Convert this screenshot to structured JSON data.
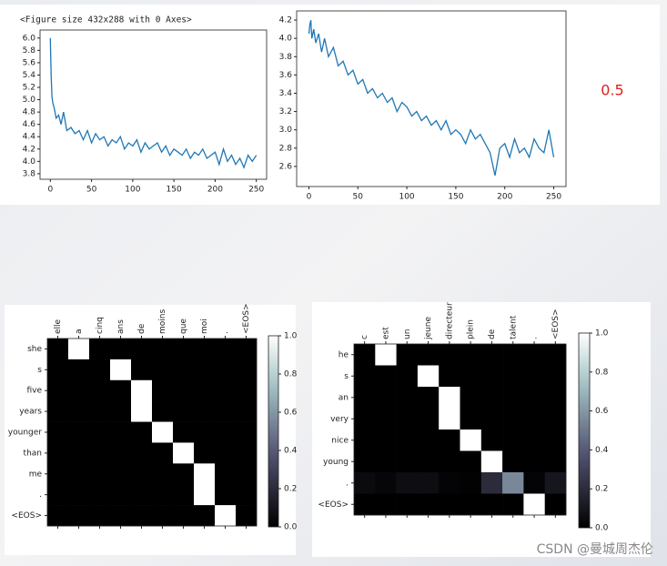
{
  "figure_text": "<Figure size 432x288 with 0 Axes>",
  "annotation": "0.5",
  "watermark": "CSDN @曼城周杰伦",
  "chart_data": [
    {
      "type": "line",
      "color": "#1f77b4",
      "x": [
        0,
        1,
        2,
        3,
        5,
        7,
        10,
        13,
        16,
        20,
        25,
        30,
        35,
        40,
        45,
        50,
        55,
        60,
        65,
        70,
        75,
        80,
        85,
        90,
        95,
        100,
        105,
        110,
        115,
        120,
        125,
        130,
        135,
        140,
        145,
        150,
        155,
        160,
        165,
        170,
        175,
        180,
        185,
        190,
        195,
        200,
        205,
        210,
        215,
        220,
        225,
        230,
        235,
        240,
        245,
        250
      ],
      "values": [
        6.0,
        5.4,
        5.05,
        4.95,
        4.85,
        4.7,
        4.75,
        4.6,
        4.8,
        4.5,
        4.55,
        4.45,
        4.5,
        4.35,
        4.5,
        4.3,
        4.45,
        4.35,
        4.4,
        4.25,
        4.35,
        4.3,
        4.4,
        4.2,
        4.3,
        4.25,
        4.35,
        4.15,
        4.3,
        4.2,
        4.25,
        4.3,
        4.15,
        4.25,
        4.1,
        4.2,
        4.15,
        4.1,
        4.2,
        4.05,
        4.15,
        4.1,
        4.2,
        4.05,
        4.1,
        4.15,
        3.95,
        4.2,
        4.0,
        4.1,
        3.95,
        4.05,
        3.9,
        4.1,
        4.0,
        4.1
      ],
      "xlim": [
        -12.5,
        262.5
      ],
      "xticks": [
        0,
        50,
        100,
        150,
        200,
        250
      ],
      "ylim": [
        3.71,
        6.13
      ],
      "yticks": [
        3.8,
        {
          "value": 4,
          "label": "4.0"
        },
        4.2,
        4.4,
        4.6,
        4.8,
        {
          "value": 5,
          "label": "5.0"
        },
        5.2,
        5.4,
        5.6,
        5.8,
        {
          "value": 6,
          "label": "6.0"
        }
      ]
    },
    {
      "type": "line",
      "color": "#1f77b4",
      "x": [
        0,
        1,
        2,
        3,
        5,
        7,
        10,
        13,
        16,
        20,
        25,
        30,
        35,
        40,
        45,
        50,
        55,
        60,
        65,
        70,
        75,
        80,
        85,
        90,
        95,
        100,
        105,
        110,
        115,
        120,
        125,
        130,
        135,
        140,
        145,
        150,
        155,
        160,
        165,
        170,
        175,
        180,
        185,
        190,
        195,
        200,
        205,
        210,
        215,
        220,
        225,
        230,
        235,
        240,
        245,
        250
      ],
      "values": [
        4.05,
        4.15,
        4.2,
        4.0,
        4.1,
        3.95,
        4.05,
        3.85,
        4.0,
        3.8,
        3.9,
        3.7,
        3.75,
        3.6,
        3.65,
        3.5,
        3.55,
        3.4,
        3.45,
        3.35,
        3.4,
        3.3,
        3.35,
        3.2,
        3.3,
        3.25,
        3.15,
        3.2,
        3.1,
        3.15,
        3.05,
        3.1,
        3.0,
        3.1,
        2.95,
        3.0,
        2.95,
        2.85,
        3.0,
        2.9,
        2.95,
        2.85,
        2.75,
        2.5,
        2.8,
        2.85,
        2.7,
        2.9,
        2.75,
        2.8,
        2.7,
        2.9,
        2.8,
        2.75,
        3.0,
        2.7
      ],
      "xlim": [
        -12.5,
        262.5
      ],
      "xticks": [
        0,
        50,
        100,
        150,
        200,
        250
      ],
      "ylim": [
        2.38,
        4.3
      ],
      "yticks": [
        2.6,
        2.8,
        {
          "value": 3,
          "label": "3.0"
        },
        3.2,
        3.4,
        3.6,
        3.8,
        {
          "value": 4,
          "label": "4.0"
        },
        4.2
      ]
    },
    {
      "type": "heatmap",
      "colormap": "bone",
      "clim": [
        0,
        1
      ],
      "x_labels": [
        "elle",
        "a",
        "cinq",
        "ans",
        "de",
        "moins",
        "que",
        "moi",
        ".",
        "<EOS>"
      ],
      "y_labels": [
        "she",
        "s",
        "five",
        "years",
        "younger",
        "than",
        "me",
        ".",
        "<EOS>"
      ],
      "z": [
        [
          0,
          1,
          0,
          0,
          0,
          0,
          0,
          0,
          0,
          0
        ],
        [
          0,
          0,
          0,
          1,
          0,
          0,
          0,
          0,
          0,
          0
        ],
        [
          0,
          0,
          0,
          0,
          1,
          0,
          0,
          0,
          0,
          0
        ],
        [
          0,
          0,
          0,
          0,
          1,
          0,
          0,
          0,
          0,
          0
        ],
        [
          0,
          0,
          0,
          0,
          0,
          1,
          0,
          0,
          0,
          0
        ],
        [
          0,
          0,
          0,
          0,
          0,
          0,
          1,
          0,
          0,
          0
        ],
        [
          0,
          0,
          0,
          0,
          0,
          0,
          0,
          1,
          0,
          0
        ],
        [
          0,
          0,
          0,
          0,
          0,
          0,
          0,
          1,
          0,
          0
        ],
        [
          0,
          0,
          0,
          0,
          0,
          0,
          0,
          0,
          1,
          0
        ]
      ],
      "colorbar_ticks": [
        {
          "value": 0,
          "label": "0.0"
        },
        0.2,
        0.4,
        0.6,
        0.8,
        {
          "value": 1,
          "label": "1.0"
        }
      ]
    },
    {
      "type": "heatmap",
      "colormap": "bone",
      "clim": [
        0,
        1
      ],
      "x_labels": [
        "c",
        "est",
        "un",
        "jeune",
        "directeur",
        "plein",
        "de",
        "talent",
        ".",
        "<EOS>"
      ],
      "y_labels": [
        "he",
        "s",
        "an",
        "very",
        "nice",
        "young",
        ".",
        "<EOS>"
      ],
      "z": [
        [
          0,
          1,
          0,
          0,
          0,
          0,
          0,
          0,
          0,
          0
        ],
        [
          0,
          0,
          0,
          1,
          0,
          0,
          0,
          0,
          0,
          0
        ],
        [
          0,
          0,
          0,
          0,
          1,
          0,
          0,
          0,
          0,
          0
        ],
        [
          0,
          0,
          0,
          0,
          1,
          0,
          0,
          0,
          0,
          0
        ],
        [
          0,
          0,
          0,
          0,
          0,
          1,
          0,
          0,
          0,
          0
        ],
        [
          0,
          0,
          0,
          0,
          0,
          0,
          1,
          0,
          0,
          0
        ],
        [
          0.05,
          0.03,
          0.06,
          0.06,
          0.02,
          0.01,
          0.2,
          0.55,
          0.02,
          0.1
        ],
        [
          0,
          0,
          0,
          0,
          0,
          0,
          0,
          0,
          1,
          0
        ]
      ],
      "colorbar_ticks": [
        {
          "value": 0,
          "label": "0.0"
        },
        0.2,
        0.4,
        0.6,
        0.8,
        {
          "value": 1,
          "label": "1.0"
        }
      ]
    }
  ]
}
